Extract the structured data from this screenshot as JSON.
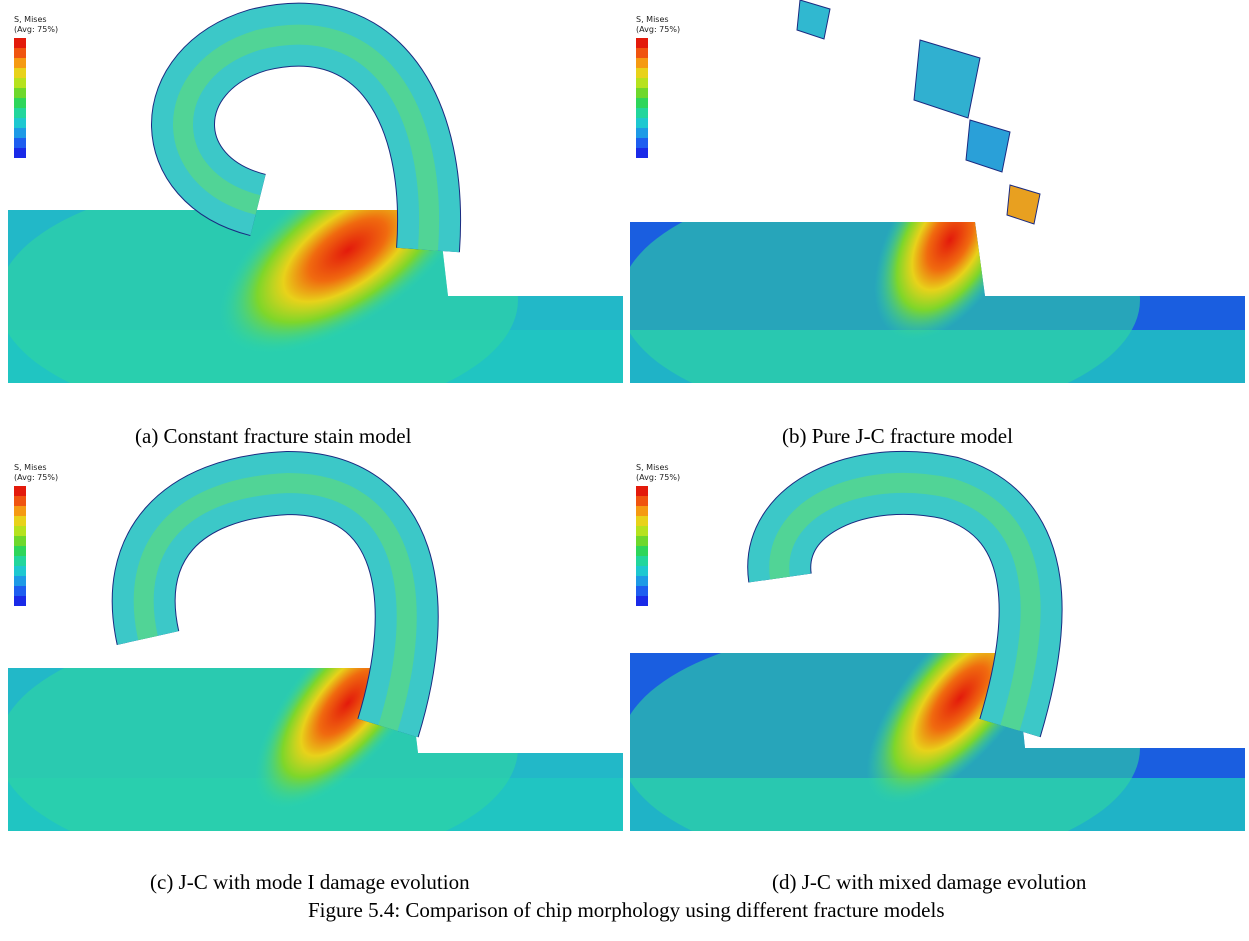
{
  "figure": {
    "panels": [
      {
        "caption": "(a) Constant fracture stain model"
      },
      {
        "caption": "(b) Pure J-C fracture model"
      },
      {
        "caption": "(c) J-C with mode I damage evolution"
      },
      {
        "caption": "(d) J-C with mixed damage evolution"
      }
    ],
    "legend_title": "S, Mises",
    "legend_subtitle": "(Avg: 75%)",
    "caption": "Figure 5.4: Comparison of chip morphology using different fracture models"
  }
}
